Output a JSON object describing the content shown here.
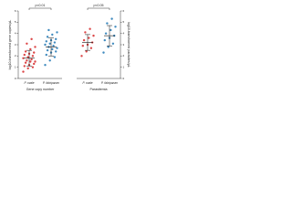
{
  "chart_data": [
    {
      "type": "strip",
      "ylabel": "log10-transformed gene copies/µL",
      "xlabel": "Gene copy number",
      "annotation": "p<0.01",
      "ylim": [
        0,
        6
      ],
      "yticks": [
        0,
        1,
        2,
        3,
        4,
        5,
        6
      ],
      "series": [
        {
          "name": "P. ovale",
          "color": "#d62728",
          "values": [
            0.6,
            0.9,
            1.0,
            1.1,
            1.2,
            1.3,
            1.4,
            1.5,
            1.5,
            1.6,
            1.7,
            1.8,
            1.9,
            2.0,
            2.1,
            2.2,
            2.3,
            2.4,
            2.6,
            2.8,
            3.1,
            3.5
          ],
          "mean": 1.8,
          "sd": 0.7
        },
        {
          "name": "P. falciparum",
          "color": "#1f77b4",
          "values": [
            1.2,
            1.6,
            1.9,
            2.1,
            2.3,
            2.4,
            2.5,
            2.6,
            2.7,
            2.8,
            2.9,
            3.0,
            3.1,
            3.2,
            3.3,
            3.4,
            3.5,
            3.7,
            3.9,
            4.1,
            4.3
          ],
          "mean": 2.8,
          "sd": 0.8
        }
      ]
    },
    {
      "type": "strip",
      "ylabel": "log10-transformed parasites/µL",
      "xlabel": "Parasitemia",
      "annotation": "p<0.05",
      "ylim": [
        0,
        6
      ],
      "yticks": [
        0,
        1,
        2,
        3,
        4,
        5,
        6
      ],
      "series": [
        {
          "name": "P. ovale",
          "color": "#d62728",
          "values": [
            2.0,
            2.4,
            2.7,
            2.9,
            3.0,
            3.2,
            3.4,
            3.6,
            3.8,
            4.1,
            4.4
          ],
          "mean": 3.2,
          "sd": 0.7
        },
        {
          "name": "P. falciparum",
          "color": "#1f77b4",
          "values": [
            2.3,
            2.8,
            3.1,
            3.4,
            3.6,
            3.8,
            4.0,
            4.3,
            4.6,
            4.9,
            5.3
          ],
          "mean": 3.8,
          "sd": 0.9
        }
      ]
    }
  ]
}
